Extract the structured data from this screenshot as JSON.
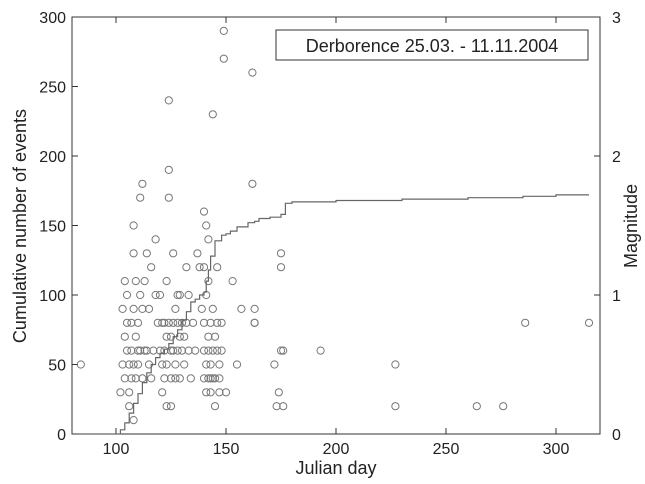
{
  "chart_data": {
    "type": "scatter",
    "title_box": "Derborence  25.03. - 11.11.2004",
    "xlabel": "Julian day",
    "ylabel_left": "Cumulative number of events",
    "ylabel_right": "Magnitude",
    "xlim": [
      80,
      320
    ],
    "ylim_left": [
      0,
      300
    ],
    "ylim_right": [
      0,
      3
    ],
    "xticks": [
      100,
      150,
      200,
      250,
      300
    ],
    "yticks_left": [
      0,
      50,
      100,
      150,
      200,
      250,
      300
    ],
    "yticks_right": [
      0,
      1,
      2,
      3
    ],
    "grid": false,
    "colors": {
      "curve": "#666666",
      "markers": "#777777",
      "axes": "#333333"
    },
    "cumulative_events": {
      "x": [
        83,
        100,
        102,
        104,
        106,
        108,
        110,
        112,
        114,
        116,
        118,
        120,
        122,
        124,
        126,
        128,
        130,
        132,
        134,
        136,
        138,
        140,
        141,
        142,
        143,
        145,
        148,
        150,
        152,
        155,
        160,
        163,
        165,
        170,
        172,
        175,
        177,
        180,
        200,
        230,
        260,
        285,
        300,
        315
      ],
      "y": [
        0,
        0,
        3,
        8,
        15,
        22,
        29,
        37,
        44,
        50,
        55,
        58,
        61,
        65,
        70,
        75,
        82,
        88,
        95,
        97,
        100,
        102,
        110,
        118,
        128,
        139,
        143,
        144,
        146,
        149,
        152,
        153,
        155,
        156,
        156,
        158,
        166,
        167,
        168,
        169,
        170,
        171,
        172,
        172
      ]
    },
    "magnitudes": {
      "x": [
        84,
        102,
        103,
        103,
        104,
        104,
        104,
        105,
        105,
        105,
        106,
        106,
        106,
        107,
        107,
        107,
        108,
        108,
        108,
        108,
        108,
        109,
        109,
        109,
        110,
        110,
        110,
        111,
        111,
        111,
        112,
        112,
        112,
        113,
        113,
        114,
        114,
        115,
        115,
        116,
        116,
        117,
        118,
        118,
        119,
        120,
        120,
        121,
        121,
        121,
        122,
        122,
        122,
        123,
        123,
        123,
        123,
        124,
        124,
        124,
        124,
        125,
        125,
        125,
        125,
        126,
        126,
        126,
        127,
        127,
        127,
        128,
        128,
        128,
        129,
        129,
        129,
        130,
        130,
        131,
        131,
        132,
        132,
        133,
        133,
        134,
        135,
        136,
        137,
        138,
        139,
        140,
        140,
        140,
        140,
        140,
        141,
        141,
        141,
        141,
        142,
        142,
        142,
        142,
        142,
        143,
        143,
        143,
        143,
        144,
        144,
        144,
        144,
        145,
        145,
        145,
        146,
        146,
        146,
        147,
        147,
        147,
        148,
        148,
        149,
        149,
        150,
        153,
        155,
        157,
        162,
        162,
        163,
        163,
        163,
        172,
        173,
        174,
        175,
        175,
        175,
        176,
        176,
        193,
        227,
        227,
        264,
        276,
        286,
        315
      ],
      "y": [
        0.5,
        0.3,
        0.5,
        0.9,
        0.4,
        0.7,
        1.1,
        0.6,
        0.8,
        1.0,
        0.2,
        0.5,
        0.3,
        0.6,
        0.4,
        0.8,
        0.5,
        1.5,
        1.3,
        0.9,
        0.1,
        0.4,
        0.7,
        1.1,
        0.5,
        0.8,
        0.6,
        1.7,
        1.0,
        0.6,
        1.8,
        0.4,
        0.9,
        0.6,
        1.1,
        0.6,
        1.3,
        0.5,
        0.9,
        1.2,
        0.4,
        0.6,
        1.0,
        1.4,
        0.8,
        0.6,
        1.0,
        0.3,
        0.5,
        0.8,
        0.8,
        0.4,
        0.6,
        0.2,
        0.5,
        0.7,
        1.1,
        2.4,
        1.9,
        1.7,
        0.8,
        0.6,
        0.4,
        0.7,
        0.2,
        0.8,
        1.3,
        0.6,
        0.9,
        0.5,
        0.4,
        0.6,
        0.8,
        1.0,
        0.7,
        0.4,
        1.0,
        0.6,
        0.8,
        0.5,
        0.7,
        1.2,
        0.8,
        0.6,
        1.0,
        0.4,
        0.8,
        0.6,
        1.3,
        1.2,
        0.9,
        0.4,
        0.6,
        0.8,
        1.2,
        1.6,
        1.5,
        0.5,
        1.0,
        0.3,
        0.7,
        1.1,
        0.6,
        0.4,
        1.4,
        0.4,
        0.8,
        0.5,
        0.3,
        0.9,
        0.6,
        0.4,
        2.3,
        0.2,
        0.7,
        0.4,
        0.6,
        0.8,
        1.2,
        0.5,
        0.4,
        0.3,
        0.6,
        0.8,
        2.9,
        2.7,
        0.3,
        1.1,
        0.5,
        0.9,
        1.8,
        2.6,
        0.8,
        0.9,
        0.8,
        0.5,
        0.2,
        0.3,
        1.3,
        1.2,
        0.6,
        0.2,
        0.6,
        0.6,
        0.5,
        0.2,
        0.2,
        0.2,
        0.8,
        0.8
      ]
    }
  }
}
